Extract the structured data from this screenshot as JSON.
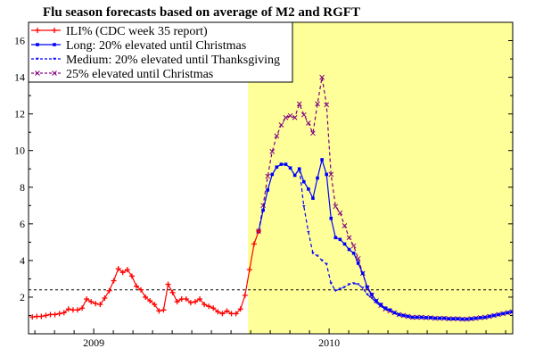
{
  "chart_data": {
    "type": "line",
    "title": "Flu season forecasts based on average of M2 and RGFT",
    "xlabel": "",
    "ylabel": "",
    "xlim": [
      2008.723,
      2010.78
    ],
    "ylim": [
      0,
      17
    ],
    "x_unit": "year (weekly points)",
    "x_start": 2008.739,
    "x_step": 0.01923,
    "x_ticks": [
      {
        "value": 2009,
        "label": "2009"
      },
      {
        "value": 2010,
        "label": "2010"
      }
    ],
    "y_ticks": [
      {
        "value": 2,
        "label": "2"
      },
      {
        "value": 4,
        "label": "4"
      },
      {
        "value": 6,
        "label": "6"
      },
      {
        "value": 8,
        "label": "8"
      },
      {
        "value": 10,
        "label": "10"
      },
      {
        "value": 12,
        "label": "12"
      },
      {
        "value": 14,
        "label": "14"
      },
      {
        "value": 16,
        "label": "16"
      }
    ],
    "grid": false,
    "legend_position": "top-left",
    "forecast_region_start": 2009.655,
    "forecast_region_color": "#ffff99",
    "baseline": {
      "value": 2.4,
      "style": "dashed",
      "color": "#000000"
    },
    "series": [
      {
        "name": "ILI% (CDC week 35 report)",
        "color": "#ff0000",
        "dash": "",
        "marker": "plus",
        "start_index": 0,
        "values": [
          0.92,
          0.95,
          0.95,
          1.0,
          1.05,
          1.05,
          1.1,
          1.15,
          1.35,
          1.3,
          1.3,
          1.4,
          1.9,
          1.75,
          1.65,
          1.6,
          1.95,
          2.35,
          2.9,
          3.55,
          3.35,
          3.5,
          3.15,
          2.6,
          2.4,
          2.0,
          1.8,
          1.6,
          1.25,
          1.3,
          2.7,
          2.25,
          1.75,
          1.9,
          1.9,
          1.7,
          1.75,
          1.9,
          1.6,
          1.5,
          1.4,
          1.2,
          1.1,
          1.25,
          1.1,
          1.1,
          1.35,
          2.1,
          3.5,
          4.9,
          5.6
        ]
      },
      {
        "name": "Long: 20% elevated until Christmas",
        "color": "#0000ff",
        "dash": "",
        "marker": "square",
        "start_index": 50,
        "values": [
          5.6,
          6.75,
          7.85,
          8.7,
          9.1,
          9.25,
          9.25,
          9.05,
          8.65,
          9.0,
          8.3,
          7.9,
          7.4,
          8.5,
          9.5,
          8.7,
          6.3,
          5.25,
          5.15,
          4.9,
          4.6,
          4.4,
          3.85,
          3.3,
          2.55,
          2.15,
          1.8,
          1.6,
          1.4,
          1.3,
          1.15,
          1.05,
          1.0,
          0.95,
          0.9,
          0.9,
          0.9,
          0.88,
          0.88,
          0.85,
          0.85,
          0.85,
          0.82,
          0.82,
          0.82,
          0.8,
          0.8,
          0.82,
          0.85,
          0.88,
          0.9,
          0.95,
          1.0,
          1.05,
          1.1,
          1.15,
          1.2,
          1.2
        ]
      },
      {
        "name": "Medium: 20% elevated until Thanksgiving",
        "color": "#0000ff",
        "dash": "4,3",
        "marker": "triangle",
        "start_index": 50,
        "values": [
          5.6,
          6.75,
          7.85,
          8.7,
          9.1,
          9.25,
          9.25,
          9.05,
          8.65,
          9.0,
          6.95,
          5.55,
          4.4,
          4.25,
          4.0,
          3.8,
          2.75,
          2.35,
          2.45,
          2.55,
          2.7,
          2.75,
          2.7,
          2.5,
          2.15,
          1.95,
          1.7,
          1.5,
          1.35,
          1.25,
          1.15,
          1.05,
          1.0,
          0.95,
          0.9,
          0.9,
          0.9,
          0.88,
          0.88,
          0.85,
          0.85,
          0.85,
          0.82,
          0.82,
          0.82,
          0.8,
          0.8,
          0.82,
          0.85,
          0.88,
          0.9,
          0.95,
          1.0,
          1.05,
          1.1,
          1.15,
          1.2,
          1.2
        ]
      },
      {
        "name": "25% elevated until Christmas",
        "color": "#800080",
        "dash": "4,3",
        "marker": "cross",
        "start_index": 50,
        "values": [
          5.6,
          7.0,
          8.6,
          9.95,
          10.8,
          11.4,
          11.8,
          11.9,
          11.8,
          12.55,
          11.95,
          11.5,
          10.95,
          12.55,
          14.0,
          12.5,
          8.7,
          6.95,
          6.6,
          5.9,
          5.25,
          4.8,
          4.1,
          3.3,
          2.5,
          2.1,
          1.8,
          1.55,
          1.35,
          1.25,
          1.15,
          1.05,
          1.0,
          0.95,
          0.9,
          0.9,
          0.9,
          0.88,
          0.88,
          0.85,
          0.85,
          0.85,
          0.82,
          0.82,
          0.82,
          0.8,
          0.8,
          0.82,
          0.85,
          0.88,
          0.9,
          0.95,
          1.0,
          1.05,
          1.1,
          1.15,
          1.2,
          1.2
        ]
      }
    ]
  }
}
